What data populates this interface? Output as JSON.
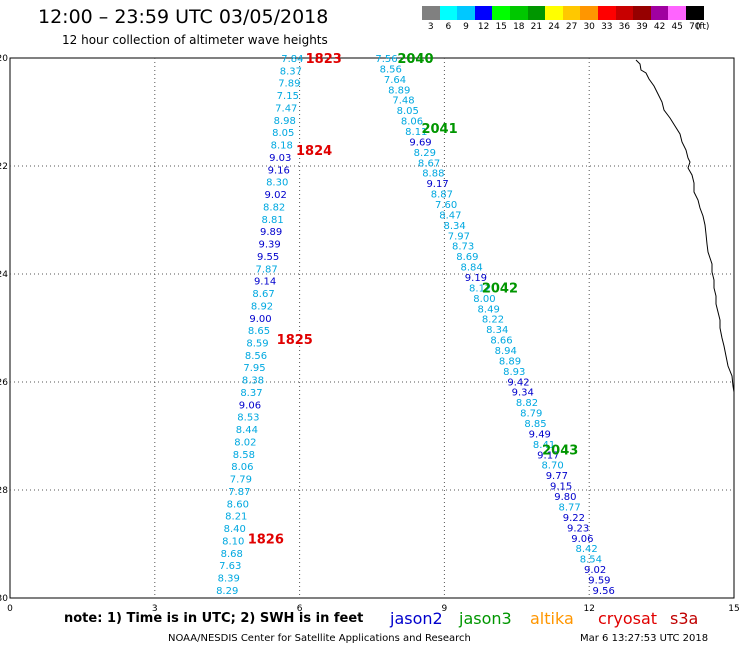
{
  "header": {
    "title": "12:00 – 23:59 UTC 03/05/2018",
    "subtitle": "12 hour collection of altimeter wave heights"
  },
  "colorbar": {
    "unit_label": "(ft)",
    "ticks": [
      "3",
      "6",
      "9",
      "12",
      "15",
      "18",
      "21",
      "24",
      "27",
      "30",
      "33",
      "36",
      "39",
      "42",
      "45",
      "70"
    ],
    "colors": [
      "#808080",
      "#00ffff",
      "#00c8ff",
      "#0000ff",
      "#00ff00",
      "#00c800",
      "#009600",
      "#ffff00",
      "#ffc800",
      "#ff9600",
      "#ff0000",
      "#c80000",
      "#960000",
      "#a000a0",
      "#ff64ff",
      "#000000"
    ]
  },
  "map": {
    "lat_ticks": [
      "-20",
      "-22",
      "-24",
      "-26",
      "-28",
      "-30"
    ],
    "lon_ticks": [
      "0",
      "3",
      "6",
      "9",
      "12",
      "15"
    ],
    "lat_range": [
      -30,
      -20
    ],
    "lon_range": [
      0,
      15
    ],
    "grid": true
  },
  "tracks": [
    {
      "name": "1823-1826",
      "satellite": "cryosat",
      "labels": [
        {
          "text": "1823",
          "lat": -20.0,
          "lon": 6.5
        },
        {
          "text": "1824",
          "lat": -21.7,
          "lon": 6.3
        },
        {
          "text": "1825",
          "lat": -25.2,
          "lon": 5.9
        },
        {
          "text": "1826",
          "lat": -28.9,
          "lon": 5.3
        }
      ],
      "start": {
        "lat": -20.0,
        "lon": 5.85
      },
      "end": {
        "lat": -29.85,
        "lon": 4.5
      },
      "values": [
        "7.84",
        "8.37",
        "7.89",
        "7.15",
        "7.47",
        "8.98",
        "8.05",
        "8.18",
        "9.03",
        "9.16",
        "8.30",
        "9.02",
        "8.82",
        "8.81",
        "9.89",
        "9.39",
        "9.55",
        "7.87",
        "9.14",
        "8.67",
        "8.92",
        "9.00",
        "8.65",
        "8.59",
        "8.56",
        "7.95",
        "8.38",
        "8.37",
        "9.06",
        "8.53",
        "8.44",
        "8.02",
        "8.58",
        "8.06",
        "7.79",
        "7.87",
        "8.60",
        "8.21",
        "8.40",
        "8.10",
        "8.68",
        "7.63",
        "8.39",
        "8.29"
      ]
    },
    {
      "name": "2040-2043",
      "satellite": "jason3",
      "labels": [
        {
          "text": "2040",
          "lat": -20.0,
          "lon": 8.4
        },
        {
          "text": "2041",
          "lat": -21.3,
          "lon": 8.9
        },
        {
          "text": "2042",
          "lat": -24.25,
          "lon": 10.15
        },
        {
          "text": "2043",
          "lat": -27.25,
          "lon": 11.4
        }
      ],
      "start": {
        "lat": -20.0,
        "lon": 7.8
      },
      "end": {
        "lat": -29.85,
        "lon": 12.3
      },
      "values": [
        "7.56",
        "8.56",
        "7.64",
        "8.89",
        "7.48",
        "8.05",
        "8.06",
        "8.11",
        "9.69",
        "8.29",
        "8.67",
        "8.88",
        "9.17",
        "8.87",
        "7.60",
        "8.47",
        "8.34",
        "7.97",
        "8.73",
        "8.69",
        "8.84",
        "9.19",
        "8.12",
        "8.00",
        "8.49",
        "8.22",
        "8.34",
        "8.66",
        "8.94",
        "8.89",
        "8.93",
        "9.42",
        "9.34",
        "8.82",
        "8.79",
        "8.85",
        "9.49",
        "8.41",
        "9.17",
        "8.70",
        "9.77",
        "9.15",
        "9.80",
        "8.77",
        "9.22",
        "9.23",
        "9.06",
        "8.42",
        "8.54",
        "9.02",
        "9.59",
        "9.56"
      ]
    }
  ],
  "legend": {
    "note": "note: 1) Time is in UTC; 2) SWH is in feet",
    "items": [
      {
        "label": "jason2",
        "color": "#0000cc",
        "x": 390
      },
      {
        "label": "jason3",
        "color": "#009600",
        "x": 459
      },
      {
        "label": "altika",
        "color": "#ff9600",
        "x": 530
      },
      {
        "label": "cryosat",
        "color": "#e00000",
        "x": 598
      },
      {
        "label": "s3a",
        "color": "#c00000",
        "x": 670
      }
    ]
  },
  "footer": {
    "credit": "NOAA/NESDIS Center for Satellite Applications and Research",
    "timestamp": "Mar  6 13:27:53 UTC 2018"
  }
}
